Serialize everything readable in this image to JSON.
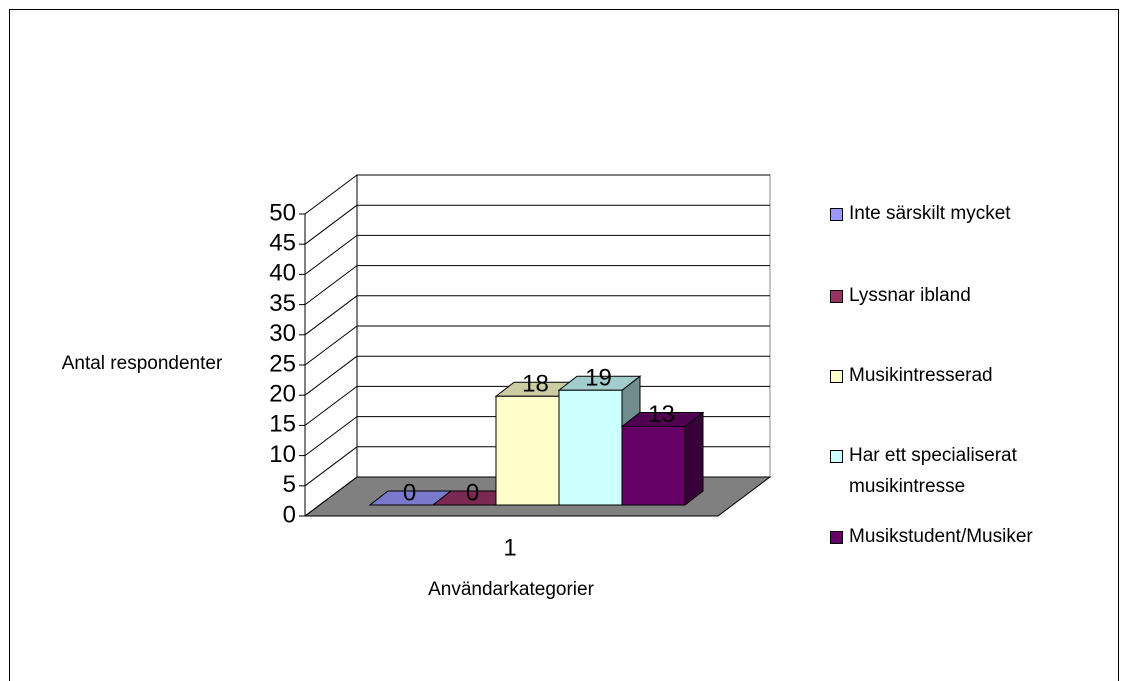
{
  "chart_data": {
    "type": "bar3d",
    "categories": [
      "1"
    ],
    "series": [
      {
        "name": "Inte särskilt mycket",
        "color": "#9999ff",
        "values": [
          0
        ]
      },
      {
        "name": "Lyssnar ibland",
        "color": "#993366",
        "values": [
          0
        ]
      },
      {
        "name": "Musikintresserad",
        "color": "#ffffcc",
        "values": [
          18
        ]
      },
      {
        "name": "Har ett specialiserat musikintresse",
        "color": "#ccffff",
        "values": [
          19
        ]
      },
      {
        "name": "Musikstudent/Musiker",
        "color": "#660066",
        "values": [
          13
        ]
      }
    ],
    "ylabel": "Antal respondenter",
    "xlabel": "Användarkategorier",
    "ylim": [
      0,
      50
    ],
    "yticks": [
      0,
      5,
      10,
      15,
      20,
      25,
      30,
      35,
      40,
      45,
      50
    ],
    "grid": true,
    "legend": "right"
  }
}
